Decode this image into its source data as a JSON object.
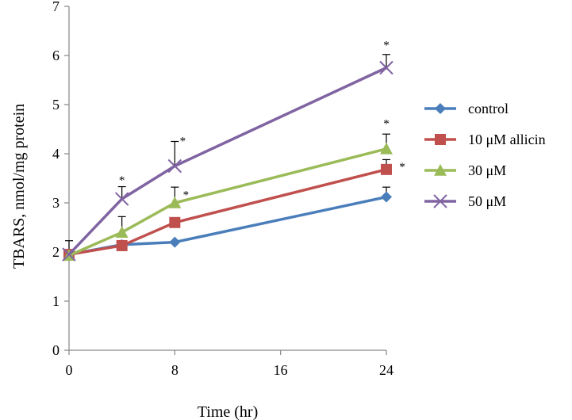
{
  "chart_data": {
    "type": "line",
    "title": "",
    "xlabel": "Time (hr)",
    "ylabel": "TBARS, nmol/mg  protein",
    "x": [
      0,
      4,
      8,
      24
    ],
    "xticks": [
      0,
      8,
      16,
      24
    ],
    "xlim": [
      0,
      24
    ],
    "ylim": [
      0,
      7
    ],
    "yticks": [
      0,
      1,
      2,
      3,
      4,
      5,
      6,
      7
    ],
    "grid": false,
    "legend_position": "right",
    "series": [
      {
        "name": "control",
        "color": "#4a7ebb",
        "marker": "diamond",
        "values": [
          1.95,
          2.15,
          2.2,
          3.12
        ],
        "error": [
          0.28,
          0.0,
          0.0,
          0.2
        ]
      },
      {
        "name": "10 μM allicin",
        "color": "#c0504d",
        "marker": "square",
        "values": [
          1.95,
          2.13,
          2.6,
          3.68
        ],
        "error": [
          0.0,
          0.0,
          0.0,
          0.2
        ]
      },
      {
        "name": "30 μM",
        "color": "#9bbb59",
        "marker": "triangle",
        "values": [
          1.93,
          2.4,
          3.0,
          4.1
        ],
        "error": [
          0.0,
          0.32,
          0.32,
          0.3
        ]
      },
      {
        "name": "50 μM",
        "color": "#8064a2",
        "marker": "x",
        "values": [
          1.95,
          3.08,
          3.75,
          5.75
        ],
        "error": [
          0.0,
          0.25,
          0.5,
          0.27
        ]
      }
    ],
    "annotations": [
      {
        "text": "*",
        "x": 4,
        "y": 3.55
      },
      {
        "text": "*",
        "x": 8,
        "y": 4.35
      },
      {
        "text": "*",
        "x": 8,
        "y": 3.25
      },
      {
        "text": "*",
        "x": 24,
        "y": 6.3
      },
      {
        "text": "*",
        "x": 24,
        "y": 4.7
      },
      {
        "text": "*",
        "x": 24,
        "y": 3.82
      }
    ]
  }
}
